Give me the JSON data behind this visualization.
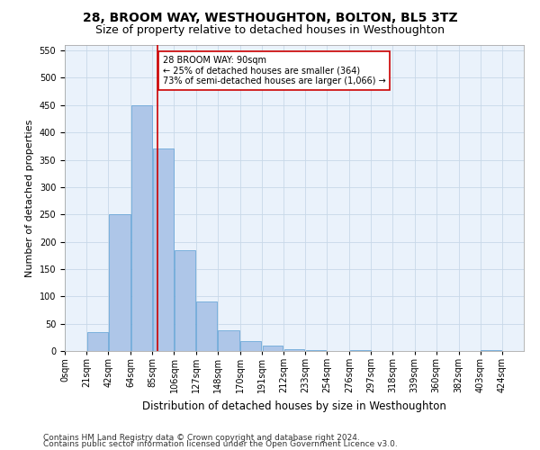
{
  "title": "28, BROOM WAY, WESTHOUGHTON, BOLTON, BL5 3TZ",
  "subtitle": "Size of property relative to detached houses in Westhoughton",
  "xlabel": "Distribution of detached houses by size in Westhoughton",
  "ylabel": "Number of detached properties",
  "footnote1": "Contains HM Land Registry data © Crown copyright and database right 2024.",
  "footnote2": "Contains public sector information licensed under the Open Government Licence v3.0.",
  "bin_labels": [
    "0sqm",
    "21sqm",
    "42sqm",
    "64sqm",
    "85sqm",
    "106sqm",
    "127sqm",
    "148sqm",
    "170sqm",
    "191sqm",
    "212sqm",
    "233sqm",
    "254sqm",
    "276sqm",
    "297sqm",
    "318sqm",
    "339sqm",
    "360sqm",
    "382sqm",
    "403sqm",
    "424sqm"
  ],
  "bin_edges": [
    0,
    21,
    42,
    64,
    85,
    106,
    127,
    148,
    170,
    191,
    212,
    233,
    254,
    276,
    297,
    318,
    339,
    360,
    382,
    403,
    424,
    445
  ],
  "bar_heights": [
    0,
    35,
    250,
    450,
    370,
    185,
    90,
    38,
    18,
    10,
    3,
    1,
    0,
    1,
    0,
    0,
    0,
    0,
    0,
    1,
    0
  ],
  "bar_color": "#aec6e8",
  "bar_edge_color": "#5a9fd4",
  "vline_x": 90,
  "vline_color": "#cc0000",
  "annotation_text": "28 BROOM WAY: 90sqm\n← 25% of detached houses are smaller (364)\n73% of semi-detached houses are larger (1,066) →",
  "annotation_box_color": "#ffffff",
  "annotation_box_edgecolor": "#cc0000",
  "ylim": [
    0,
    560
  ],
  "yticks": [
    0,
    50,
    100,
    150,
    200,
    250,
    300,
    350,
    400,
    450,
    500,
    550
  ],
  "grid_color": "#c8d8e8",
  "background_color": "#eaf2fb",
  "title_fontsize": 10,
  "subtitle_fontsize": 9,
  "xlabel_fontsize": 8.5,
  "ylabel_fontsize": 8,
  "tick_fontsize": 7,
  "footnote_fontsize": 6.5,
  "fig_width": 6.0,
  "fig_height": 5.0,
  "fig_dpi": 100
}
